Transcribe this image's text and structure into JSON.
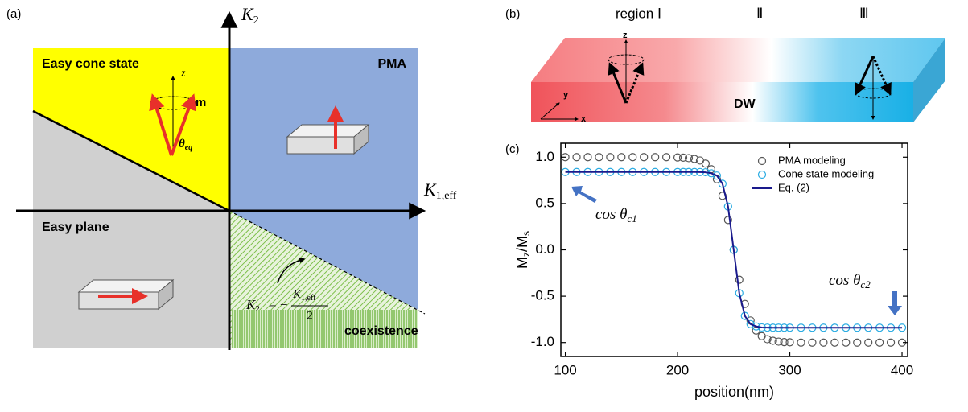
{
  "panel_a": {
    "label": "(a)",
    "axis_k2": {
      "main": "K",
      "sub": "2"
    },
    "axis_k1": {
      "main": "K",
      "sub": "1,eff"
    },
    "regions": {
      "easy_cone": "Easy cone state",
      "pma": "PMA",
      "easy_plane": "Easy plane",
      "coexistence": "coexistence"
    },
    "vector_labels": {
      "z": "z",
      "m": "m",
      "theta": "θ",
      "theta_sub": "eq"
    },
    "formula": {
      "lhs_main": "K",
      "lhs_sub": "2",
      "equals": "= −",
      "num_main": "K",
      "num_sub": "1,eff",
      "den": "2"
    }
  },
  "panel_b": {
    "label": "(b)",
    "region1": "region Ⅰ",
    "region2": "Ⅱ",
    "region3": "Ⅲ",
    "z": "z",
    "y": "y",
    "x": "x",
    "dw": "DW"
  },
  "chart_data": {
    "type": "line",
    "panel_label": "(c)",
    "xlabel": "position(nm)",
    "ylabel": {
      "m1": "M",
      "s1": "z",
      "m2": "/M",
      "s2": "s"
    },
    "x": [
      100,
      110,
      120,
      130,
      140,
      150,
      160,
      170,
      180,
      190,
      200,
      205,
      210,
      215,
      220,
      225,
      230,
      235,
      240,
      245,
      250,
      255,
      260,
      265,
      270,
      275,
      280,
      285,
      290,
      295,
      300,
      310,
      320,
      330,
      340,
      350,
      360,
      370,
      380,
      390,
      400
    ],
    "series": [
      {
        "name": "PMA modeling",
        "color": "#555555",
        "mode": "markers",
        "values": [
          1,
          1,
          1,
          1,
          1,
          1,
          1,
          1,
          1,
          1,
          0.997,
          0.995,
          0.99,
          0.981,
          0.964,
          0.931,
          0.87,
          0.762,
          0.583,
          0.322,
          0,
          -0.322,
          -0.583,
          -0.762,
          -0.87,
          -0.931,
          -0.964,
          -0.981,
          -0.99,
          -0.995,
          -0.997,
          -1,
          -1,
          -1,
          -1,
          -1,
          -1,
          -1,
          -1,
          -1,
          -1
        ]
      },
      {
        "name": "Cone state modeling",
        "color": "#29abe2",
        "mode": "markers",
        "values": [
          0.84,
          0.84,
          0.84,
          0.84,
          0.84,
          0.84,
          0.84,
          0.84,
          0.84,
          0.84,
          0.84,
          0.84,
          0.84,
          0.84,
          0.839,
          0.837,
          0.826,
          0.801,
          0.713,
          0.467,
          0,
          -0.467,
          -0.713,
          -0.801,
          -0.826,
          -0.837,
          -0.839,
          -0.84,
          -0.84,
          -0.84,
          -0.84,
          -0.84,
          -0.84,
          -0.84,
          -0.84,
          -0.84,
          -0.84,
          -0.84,
          -0.84,
          -0.84,
          -0.84
        ]
      },
      {
        "name": "Eq. (2)",
        "color": "#1a1a8c",
        "mode": "line",
        "values": [
          0.84,
          0.84,
          0.84,
          0.84,
          0.84,
          0.84,
          0.84,
          0.84,
          0.84,
          0.84,
          0.84,
          0.84,
          0.84,
          0.84,
          0.839,
          0.837,
          0.826,
          0.801,
          0.713,
          0.467,
          0,
          -0.467,
          -0.713,
          -0.801,
          -0.826,
          -0.837,
          -0.839,
          -0.84,
          -0.84,
          -0.84,
          -0.84,
          -0.84,
          -0.84,
          -0.84,
          -0.84,
          -0.84,
          -0.84,
          -0.84,
          -0.84,
          -0.84,
          -0.84
        ]
      }
    ],
    "xlim": [
      96,
      405
    ],
    "xticks": [
      100,
      200,
      300,
      400
    ],
    "ylim": [
      -1.15,
      1.15
    ],
    "yticks": [
      {
        "value": -1,
        "label": "-1.0"
      },
      -0.5,
      {
        "value": 0,
        "label": "0.0"
      },
      0.5,
      {
        "value": 1,
        "label": "1.0"
      }
    ],
    "legend": "upper right",
    "annotations": [
      {
        "main": "cos θ",
        "sub": "c1"
      },
      {
        "main": "cos θ",
        "sub": "c2"
      }
    ]
  }
}
